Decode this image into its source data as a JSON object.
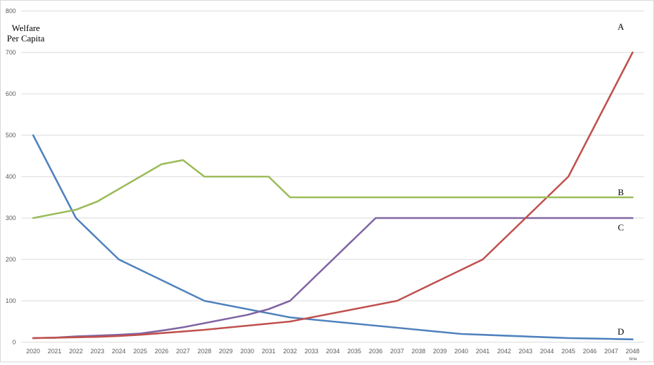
{
  "chart_data": {
    "type": "line",
    "title": "",
    "ylabel_line1": "Welfare",
    "ylabel_line2": "Per Capita",
    "xlabel": "time",
    "ylim": [
      0,
      800
    ],
    "yticks": [
      0,
      100,
      200,
      300,
      400,
      500,
      600,
      700,
      800
    ],
    "grid": true,
    "x": [
      2020,
      2021,
      2022,
      2023,
      2024,
      2025,
      2026,
      2027,
      2028,
      2029,
      2030,
      2031,
      2032,
      2033,
      2034,
      2035,
      2036,
      2037,
      2038,
      2039,
      2040,
      2041,
      2042,
      2043,
      2044,
      2045,
      2046,
      2047,
      2048
    ],
    "series": [
      {
        "name": "A",
        "color": "#c0504d",
        "values": [
          10,
          11,
          12,
          13,
          15,
          18,
          22,
          26,
          30,
          35,
          40,
          45,
          50,
          60,
          70,
          80,
          90,
          100,
          125,
          150,
          175,
          200,
          250,
          300,
          350,
          400,
          500,
          600,
          700
        ]
      },
      {
        "name": "B",
        "color": "#9bbb59",
        "values": [
          300,
          310,
          320,
          340,
          370,
          400,
          430,
          440,
          400,
          400,
          400,
          400,
          350,
          350,
          350,
          350,
          350,
          350,
          350,
          350,
          350,
          350,
          350,
          350,
          350,
          350,
          350,
          350,
          350
        ]
      },
      {
        "name": "C",
        "color": "#8064a2",
        "values": [
          10,
          11,
          14,
          16,
          18,
          21,
          28,
          36,
          46,
          56,
          66,
          80,
          100,
          150,
          200,
          250,
          300,
          300,
          300,
          300,
          300,
          300,
          300,
          300,
          300,
          300,
          300,
          300,
          300
        ]
      },
      {
        "name": "D",
        "color": "#4f81bd",
        "values": [
          500,
          400,
          300,
          250,
          200,
          175,
          150,
          125,
          100,
          90,
          80,
          70,
          60,
          55,
          50,
          45,
          40,
          35,
          30,
          25,
          20,
          18,
          16,
          14,
          12,
          10,
          9,
          8,
          7
        ]
      }
    ]
  }
}
